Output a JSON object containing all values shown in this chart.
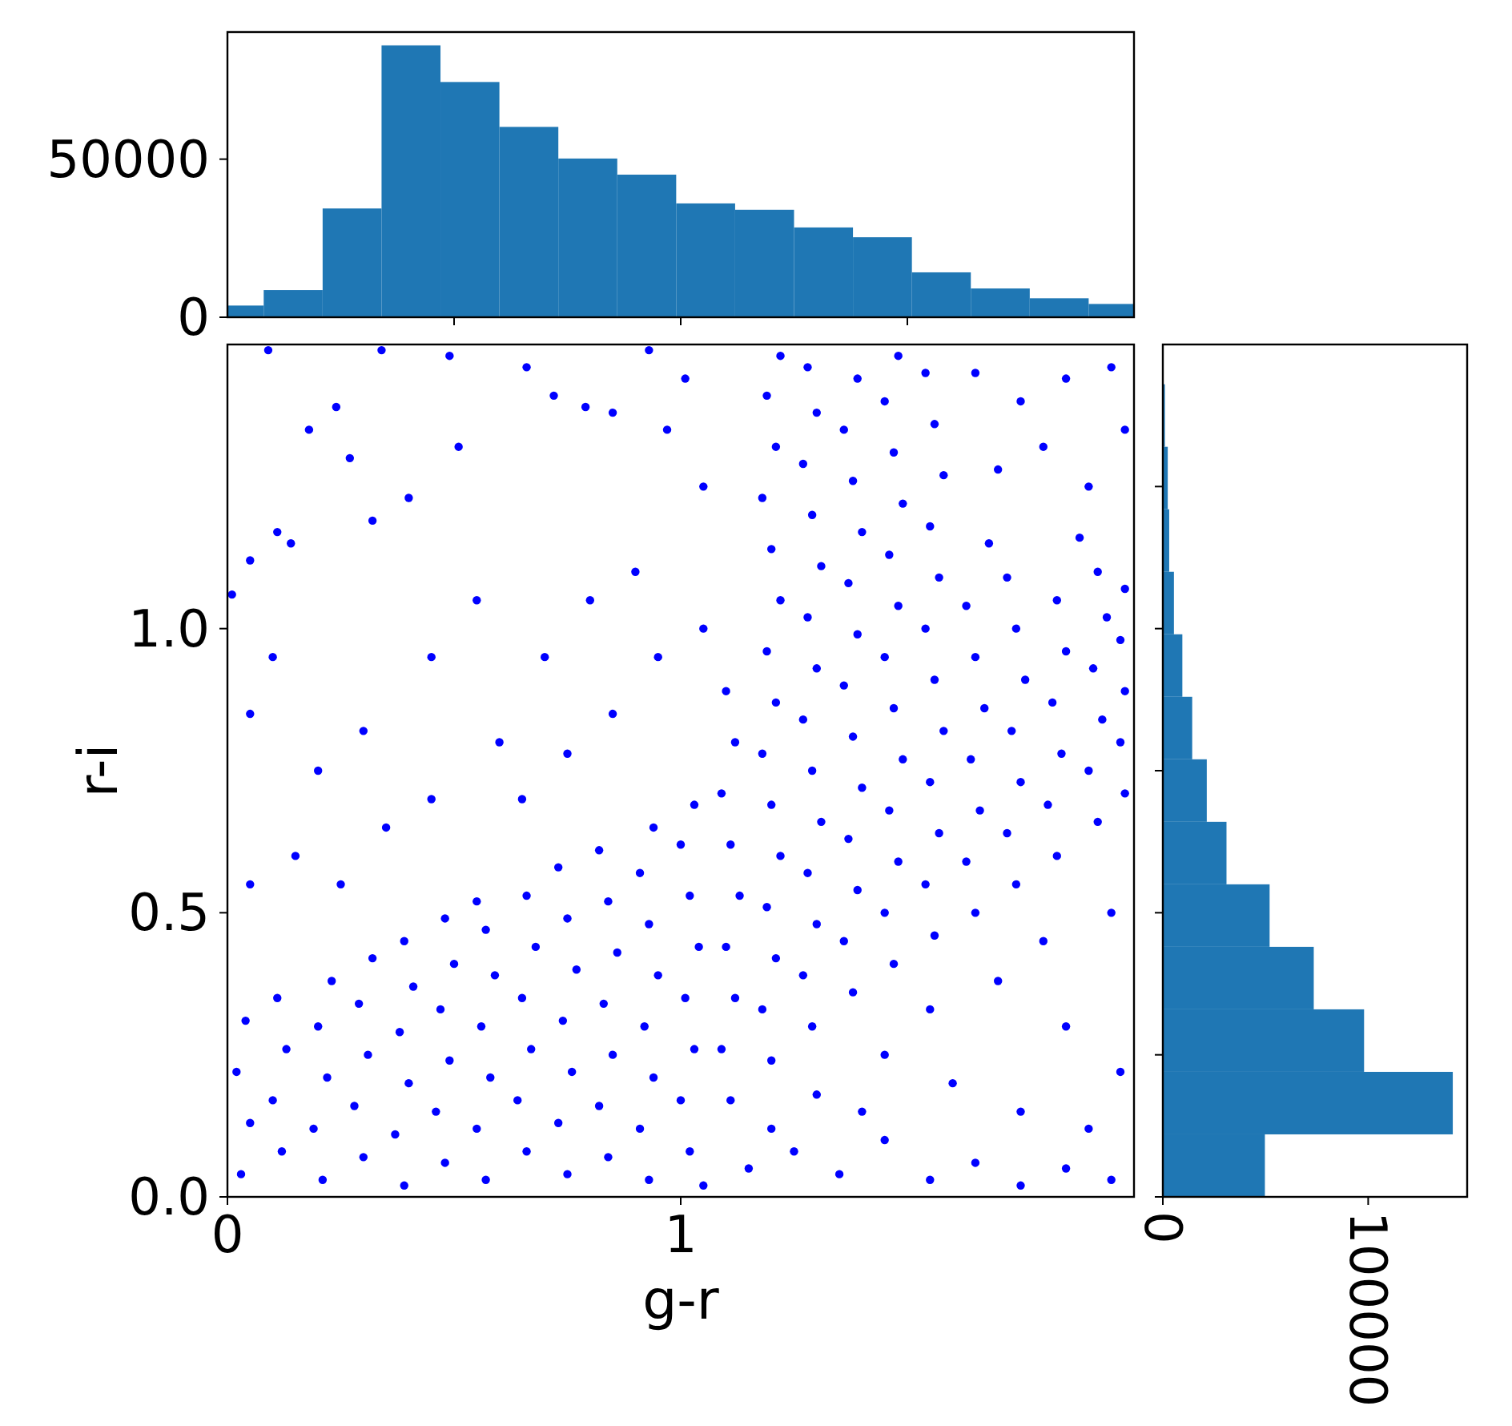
{
  "chart_data": [
    {
      "type": "histogram",
      "bins": [
        0,
        0.08,
        0.21,
        0.34,
        0.47,
        0.6,
        0.73,
        0.86,
        0.99,
        1.12,
        1.25,
        1.38,
        1.51,
        1.64,
        1.77,
        1.9,
        2
      ],
      "values": [
        3700,
        8600,
        34400,
        86000,
        74400,
        60200,
        50200,
        45100,
        36000,
        34000,
        28400,
        25300,
        14200,
        9100,
        6000,
        4200
      ],
      "color": "#1f77b4",
      "xlim": [
        0,
        2
      ],
      "xticks": [
        0.5,
        1,
        1.5
      ],
      "ylim": [
        0,
        90200
      ],
      "yticks": [
        0,
        50000
      ],
      "tick_labels": "y"
    },
    {
      "type": "scatter",
      "color": "#0000ff",
      "marker": "circle",
      "xlim": [
        0,
        2
      ],
      "xticks": [
        0,
        1
      ],
      "ylim": [
        0,
        1.5
      ],
      "yticks": [
        {
          "value": 0,
          "label": "0.0"
        },
        0.5,
        {
          "value": 1,
          "label": "1.0"
        }
      ],
      "xlabel": "g-r",
      "ylabel": "r-i",
      "x": [
        0.03,
        0.05,
        0.02,
        0.04,
        0.12,
        0.1,
        0.13,
        0.11,
        0.21,
        0.19,
        0.22,
        0.2,
        0.23,
        0.3,
        0.28,
        0.31,
        0.29,
        0.32,
        0.39,
        0.37,
        0.4,
        0.38,
        0.41,
        0.39,
        0.48,
        0.46,
        0.49,
        0.47,
        0.5,
        0.48,
        0.57,
        0.55,
        0.58,
        0.56,
        0.59,
        0.57,
        0.55,
        0.66,
        0.64,
        0.67,
        0.65,
        0.68,
        0.66,
        0.75,
        0.73,
        0.76,
        0.74,
        0.77,
        0.75,
        0.73,
        0.84,
        0.82,
        0.85,
        0.83,
        0.86,
        0.84,
        0.82,
        0.93,
        0.91,
        0.94,
        0.92,
        0.95,
        0.93,
        0.91,
        0.94,
        1.02,
        1.0,
        1.03,
        1.01,
        1.04,
        1.02,
        1.0,
        1.03,
        1.11,
        1.09,
        1.12,
        1.1,
        1.13,
        1.11,
        1.09,
        1.12,
        1.1,
        1.2,
        1.18,
        1.21,
        1.19,
        1.22,
        1.2,
        1.18,
        1.21,
        1.19,
        1.22,
        1.2,
        1.18,
        1.21,
        1.19,
        1.22,
        1.29,
        1.27,
        1.3,
        1.28,
        1.31,
        1.29,
        1.27,
        1.3,
        1.28,
        1.31,
        1.29,
        1.27,
        1.3,
        1.28,
        1.38,
        1.36,
        1.39,
        1.37,
        1.4,
        1.38,
        1.36,
        1.39,
        1.37,
        1.4,
        1.38,
        1.36,
        1.39,
        1.47,
        1.45,
        1.48,
        1.46,
        1.49,
        1.47,
        1.45,
        1.48,
        1.46,
        1.49,
        1.47,
        1.45,
        1.48,
        1.56,
        1.54,
        1.57,
        1.55,
        1.58,
        1.56,
        1.54,
        1.57,
        1.55,
        1.58,
        1.56,
        1.54,
        1.65,
        1.63,
        1.66,
        1.64,
        1.67,
        1.65,
        1.63,
        1.74,
        1.72,
        1.75,
        1.73,
        1.76,
        1.74,
        1.72,
        1.83,
        1.81,
        1.84,
        1.82,
        1.85,
        1.83,
        1.92,
        1.9,
        1.93,
        1.91,
        1.94,
        1.92,
        1.98,
        1.97,
        1.98,
        1.97,
        1.98,
        0.09,
        0.34,
        0.24,
        0.18,
        0.27,
        0.11,
        0.14,
        0.01,
        0.05,
        0.4,
        0.49,
        0.66,
        0.51,
        0.32,
        0.72,
        0.79,
        0.85,
        0.97,
        1.01,
        0.93,
        0.05,
        0.1,
        0.2,
        0.3,
        0.45,
        0.55,
        0.35,
        0.15,
        0.05,
        0.6,
        0.7,
        0.8,
        0.9,
        0.85,
        0.95,
        0.25,
        0.45,
        0.65,
        0.75,
        1.05,
        1.05,
        1.65,
        1.75,
        1.85,
        1.95,
        1.7,
        1.8,
        1.9,
        1.98,
        1.68,
        1.88,
        1.05,
        1.15,
        1.25,
        1.35,
        1.45,
        1.55,
        1.65,
        1.75,
        1.85,
        1.95,
        1.3,
        1.45,
        1.6,
        1.75,
        1.9,
        1.55,
        1.7,
        1.85,
        1.97,
        1.8,
        1.95,
        1.2,
        1.4
      ],
      "values": [
        0.04,
        0.13,
        0.22,
        0.31,
        0.08,
        0.17,
        0.26,
        0.35,
        0.03,
        0.12,
        0.21,
        0.3,
        0.38,
        0.07,
        0.16,
        0.25,
        0.34,
        0.42,
        0.02,
        0.11,
        0.2,
        0.29,
        0.37,
        0.45,
        0.06,
        0.15,
        0.24,
        0.33,
        0.41,
        0.49,
        0.03,
        0.12,
        0.21,
        0.3,
        0.39,
        0.47,
        0.52,
        0.08,
        0.17,
        0.26,
        0.35,
        0.44,
        0.53,
        0.04,
        0.13,
        0.22,
        0.31,
        0.4,
        0.49,
        0.58,
        0.07,
        0.16,
        0.25,
        0.34,
        0.43,
        0.52,
        0.61,
        0.03,
        0.12,
        0.21,
        0.3,
        0.39,
        0.48,
        0.57,
        0.65,
        0.08,
        0.17,
        0.26,
        0.35,
        0.44,
        0.53,
        0.62,
        0.69,
        0.17,
        0.26,
        0.35,
        0.44,
        0.53,
        0.62,
        0.71,
        0.8,
        0.89,
        0.24,
        0.33,
        0.42,
        0.51,
        0.6,
        0.69,
        0.78,
        0.87,
        0.96,
        1.05,
        1.14,
        1.23,
        1.32,
        1.41,
        1.48,
        0.3,
        0.39,
        0.48,
        0.57,
        0.66,
        0.75,
        0.84,
        0.93,
        1.02,
        1.11,
        1.2,
        1.29,
        1.38,
        1.46,
        0.36,
        0.45,
        0.54,
        0.63,
        0.72,
        0.81,
        0.9,
        0.99,
        1.08,
        1.17,
        1.26,
        1.35,
        1.44,
        0.41,
        0.5,
        0.59,
        0.68,
        0.77,
        0.86,
        0.95,
        1.04,
        1.13,
        1.22,
        1.31,
        1.4,
        1.48,
        0.46,
        0.55,
        0.64,
        0.73,
        0.82,
        0.91,
        1.0,
        1.09,
        1.18,
        1.27,
        1.36,
        1.45,
        0.5,
        0.59,
        0.68,
        0.77,
        0.86,
        0.95,
        1.04,
        0.55,
        0.64,
        0.73,
        0.82,
        0.91,
        1.0,
        1.09,
        0.6,
        0.69,
        0.78,
        0.87,
        0.96,
        1.05,
        0.66,
        0.75,
        0.84,
        0.93,
        1.02,
        1.1,
        0.71,
        0.8,
        0.89,
        0.98,
        1.07,
        1.49,
        1.49,
        1.39,
        1.35,
        1.3,
        1.17,
        1.15,
        1.06,
        1.12,
        1.23,
        1.48,
        1.46,
        1.32,
        1.19,
        1.41,
        1.39,
        1.38,
        1.35,
        1.44,
        1.49,
        0.85,
        0.95,
        0.75,
        0.82,
        0.95,
        1.05,
        0.65,
        0.6,
        0.55,
        0.8,
        0.95,
        1.05,
        1.1,
        0.85,
        0.95,
        0.55,
        0.7,
        0.7,
        0.78,
        1.0,
        1.25,
        1.45,
        1.4,
        1.44,
        1.46,
        1.28,
        1.32,
        1.25,
        1.35,
        1.15,
        1.16,
        0.02,
        0.05,
        0.08,
        0.04,
        0.1,
        0.03,
        0.06,
        0.02,
        0.05,
        0.03,
        0.18,
        0.25,
        0.2,
        0.15,
        0.12,
        0.33,
        0.38,
        0.3,
        0.22,
        0.45,
        0.5,
        0.12,
        0.15
      ]
    },
    {
      "type": "histogram",
      "orientation": "horizontal",
      "bins": [
        0,
        0.11,
        0.22,
        0.33,
        0.44,
        0.55,
        0.66,
        0.77,
        0.88,
        0.99,
        1.1,
        1.21,
        1.32,
        1.43
      ],
      "values": [
        49700,
        141200,
        98000,
        73500,
        52000,
        31000,
        21400,
        14300,
        9500,
        5400,
        3100,
        2400,
        1000
      ],
      "color": "#1f77b4",
      "xlim": [
        0,
        148200
      ],
      "xticks": [
        0,
        100000
      ],
      "ylim": [
        0,
        1.5
      ],
      "yticks": [
        0,
        0.25,
        0.5,
        0.75,
        1,
        1.25
      ],
      "tick_labels": "x"
    }
  ]
}
